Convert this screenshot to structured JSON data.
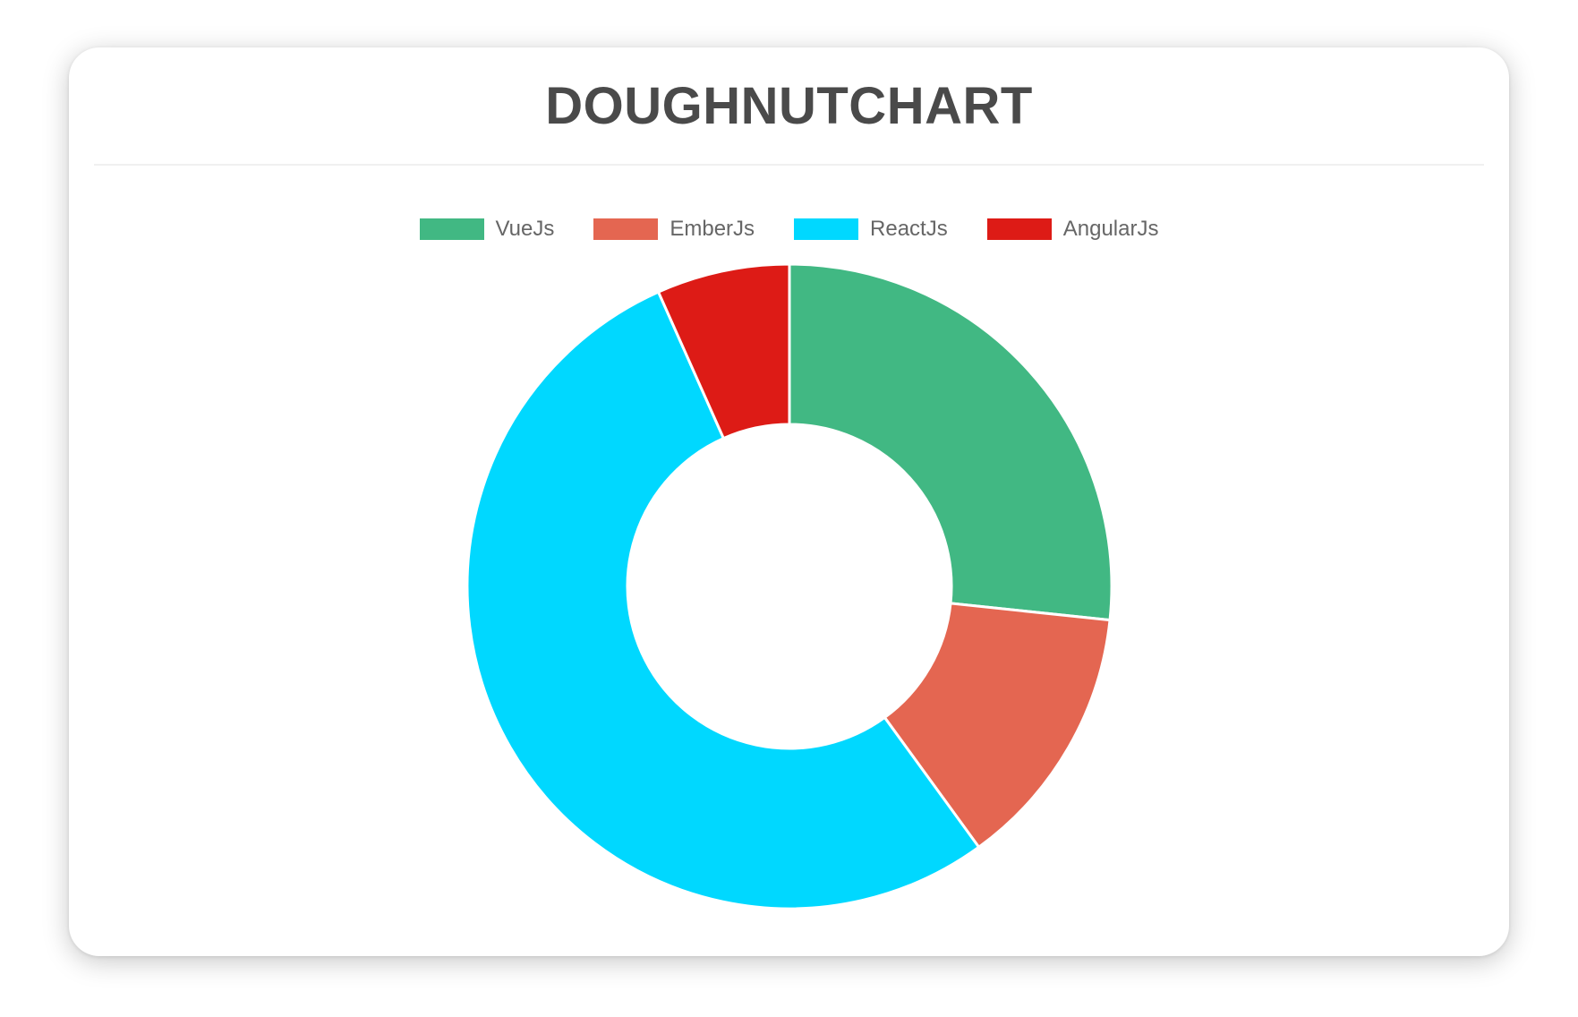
{
  "card": {
    "title": "DOUGHNUTCHART"
  },
  "chart_data": {
    "type": "pie",
    "variant": "doughnut",
    "title": "DOUGHNUTCHART",
    "categories": [
      "VueJs",
      "EmberJs",
      "ReactJs",
      "AngularJs"
    ],
    "values": [
      40,
      20,
      80,
      10
    ],
    "colors": [
      "#41B883",
      "#E46651",
      "#00D8FF",
      "#DD1B16"
    ],
    "legend_position": "top",
    "legend_text_color": "#666666",
    "start_angle_deg": 0,
    "direction": "clockwise",
    "cutout_percent": 50,
    "slice_border_color": "#ffffff",
    "slice_border_width": 3
  }
}
